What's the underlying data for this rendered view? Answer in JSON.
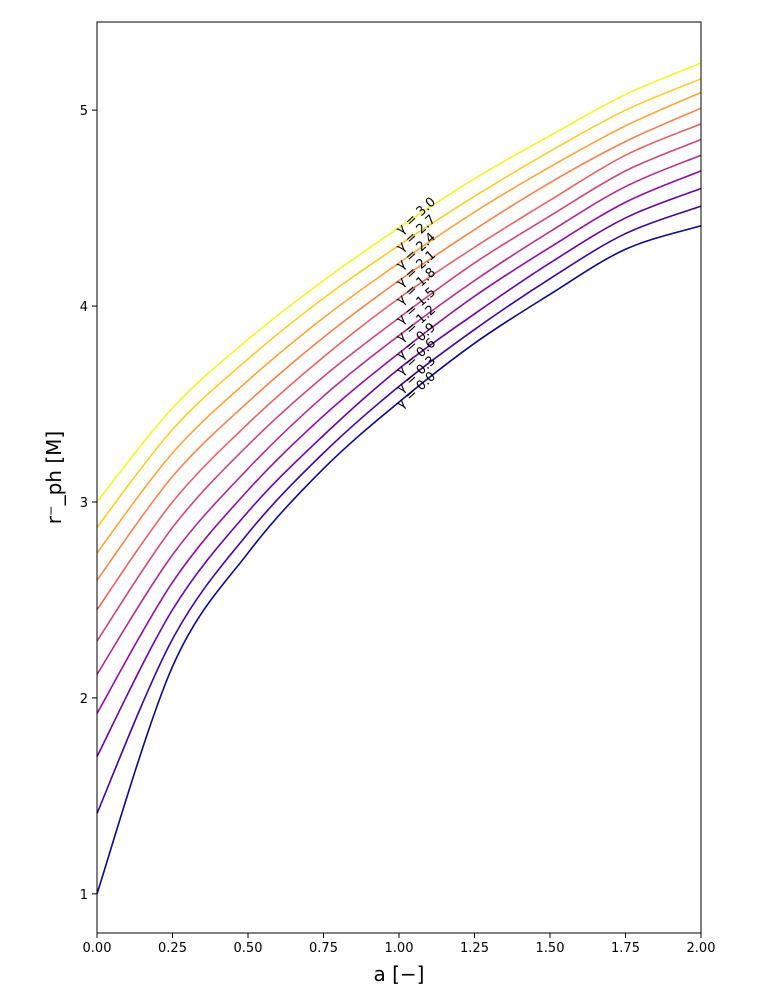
{
  "chart_data": {
    "type": "line",
    "xlabel": "a [−]",
    "ylabel": "r⁻_ph [M]",
    "xlim": [
      0.0,
      2.0
    ],
    "ylim": [
      0.8,
      5.45
    ],
    "x_ticks": [
      "0.00",
      "0.25",
      "0.50",
      "0.75",
      "1.00",
      "1.25",
      "1.50",
      "1.75",
      "2.00"
    ],
    "y_ticks": [
      "1",
      "2",
      "3",
      "4",
      "5"
    ],
    "grid": false,
    "colormap": "plasma",
    "label_x": 1.0,
    "x": [
      0.0,
      0.25,
      0.5,
      0.75,
      1.0,
      1.25,
      1.5,
      1.75,
      2.0
    ],
    "series": [
      {
        "name": "γ = 0.0",
        "color": "#0d0887",
        "values": [
          1.0,
          2.16,
          2.74,
          3.17,
          3.51,
          3.81,
          4.06,
          4.29,
          4.41
        ]
      },
      {
        "name": "γ = 0.3",
        "color": "#41049d",
        "values": [
          1.41,
          2.3,
          2.84,
          3.25,
          3.59,
          3.88,
          4.14,
          4.37,
          4.51
        ]
      },
      {
        "name": "γ = 0.6",
        "color": "#6a00a8",
        "values": [
          1.7,
          2.45,
          2.95,
          3.34,
          3.68,
          3.96,
          4.22,
          4.45,
          4.6
        ]
      },
      {
        "name": "γ = 0.9",
        "color": "#8f0da4",
        "values": [
          1.92,
          2.59,
          3.06,
          3.44,
          3.76,
          4.05,
          4.3,
          4.53,
          4.69
        ]
      },
      {
        "name": "γ = 1.2",
        "color": "#b12a90",
        "values": [
          2.12,
          2.73,
          3.17,
          3.54,
          3.85,
          4.13,
          4.38,
          4.61,
          4.77
        ]
      },
      {
        "name": "γ = 1.5",
        "color": "#cc4778",
        "values": [
          2.29,
          2.87,
          3.29,
          3.64,
          3.94,
          4.22,
          4.46,
          4.69,
          4.85
        ]
      },
      {
        "name": "γ = 1.8",
        "color": "#e16462",
        "values": [
          2.45,
          3.0,
          3.4,
          3.74,
          4.04,
          4.3,
          4.54,
          4.77,
          4.93
        ]
      },
      {
        "name": "γ = 2.1",
        "color": "#f2844b",
        "values": [
          2.6,
          3.13,
          3.51,
          3.84,
          4.13,
          4.39,
          4.63,
          4.84,
          5.01
        ]
      },
      {
        "name": "γ = 2.4",
        "color": "#fca636",
        "values": [
          2.74,
          3.25,
          3.62,
          3.94,
          4.22,
          4.48,
          4.71,
          4.92,
          5.09
        ]
      },
      {
        "name": "γ = 2.7",
        "color": "#fcce25",
        "values": [
          2.87,
          3.37,
          3.73,
          4.04,
          4.31,
          4.56,
          4.79,
          5.0,
          5.16
        ]
      },
      {
        "name": "γ = 3.0",
        "color": "#f0f921",
        "values": [
          3.0,
          3.48,
          3.83,
          4.13,
          4.4,
          4.65,
          4.87,
          5.08,
          5.24
        ]
      }
    ]
  }
}
